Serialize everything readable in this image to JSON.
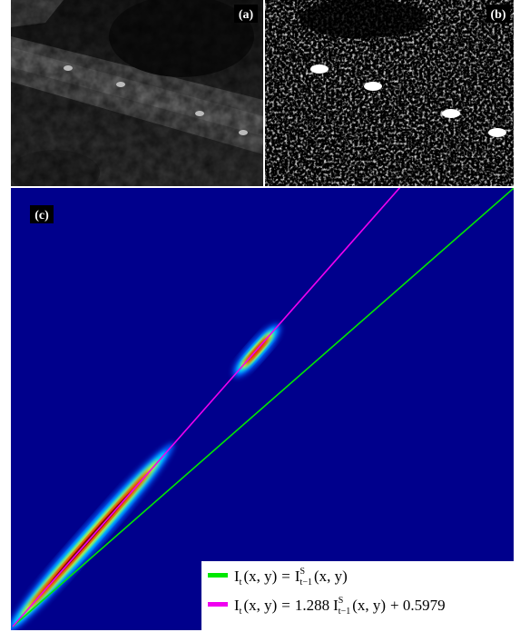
{
  "panels": [
    {
      "label": "(a)"
    },
    {
      "label": "(b)"
    },
    {
      "label": "(c)"
    }
  ],
  "legend": [
    {
      "color": "#00e800",
      "lhs": {
        "base": "I",
        "sub": "t",
        "args": "(x, y)"
      },
      "eq": "=",
      "rhs": {
        "base": "I",
        "sup": "S",
        "sub": "t−1",
        "args": "(x, y)"
      }
    },
    {
      "color": "#f000f0",
      "lhs": {
        "base": "I",
        "sub": "t",
        "args": "(x, y)"
      },
      "eq": "=",
      "coefficient": "1.288",
      "rhs": {
        "base": "I",
        "sup": "S",
        "sub": "t−1",
        "args": "(x, y)"
      },
      "offset": "+ 0.5979"
    }
  ]
}
